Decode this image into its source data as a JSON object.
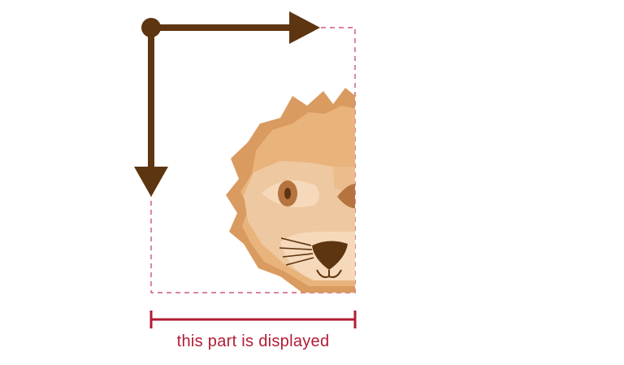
{
  "caption": "this part is displayed",
  "colors": {
    "arrow": "#5e3511",
    "crop_border": "#c0395a",
    "measure": "#b31b34",
    "mane_light": "#e9b47c",
    "mane_dark": "#d99b5f",
    "face": "#eec8a0",
    "muzzle": "#f6d9ba",
    "eye": "#b5743f",
    "nose": "#5e3511"
  },
  "icons": {
    "origin": "origin-dot-icon",
    "x_axis": "arrow-right-icon",
    "y_axis": "arrow-down-icon",
    "illustration": "lion-face-icon"
  }
}
